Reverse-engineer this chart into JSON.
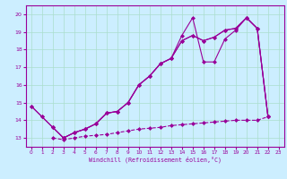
{
  "xlabel": "Windchill (Refroidissement éolien,°C)",
  "bg_color": "#cceeff",
  "line_color": "#990099",
  "grid_color": "#aaddcc",
  "xlim": [
    -0.5,
    23.5
  ],
  "ylim": [
    12.5,
    20.5
  ],
  "yticks": [
    13,
    14,
    15,
    16,
    17,
    18,
    19,
    20
  ],
  "xticks": [
    0,
    1,
    2,
    3,
    4,
    5,
    6,
    7,
    8,
    9,
    10,
    11,
    12,
    13,
    14,
    15,
    16,
    17,
    18,
    19,
    20,
    21,
    22,
    23
  ],
  "line1_y": [
    14.8,
    14.2,
    13.6,
    13.0,
    13.3,
    13.5,
    13.8,
    14.4,
    14.5,
    15.0,
    16.0,
    16.5,
    17.2,
    17.5,
    18.8,
    19.8,
    17.3,
    17.3,
    18.6,
    19.1,
    19.8,
    19.2,
    14.2,
    null
  ],
  "line2_y": [
    14.8,
    14.2,
    13.6,
    13.0,
    13.3,
    13.5,
    13.8,
    14.4,
    14.5,
    15.0,
    16.0,
    16.5,
    17.2,
    17.5,
    18.5,
    18.8,
    18.5,
    18.7,
    19.1,
    19.2,
    19.8,
    19.2,
    14.2,
    null
  ],
  "line3_y": [
    null,
    null,
    13.6,
    13.0,
    13.3,
    13.5,
    13.8,
    14.4,
    14.5,
    15.0,
    16.0,
    16.5,
    17.2,
    17.5,
    18.5,
    18.8,
    18.5,
    18.7,
    19.1,
    19.2,
    19.8,
    19.2,
    14.2,
    null
  ],
  "line4_y": [
    null,
    null,
    13.0,
    12.9,
    13.0,
    13.1,
    13.15,
    13.2,
    13.3,
    13.4,
    13.5,
    13.55,
    13.6,
    13.7,
    13.75,
    13.8,
    13.85,
    13.9,
    13.95,
    14.0,
    14.0,
    14.0,
    14.2,
    null
  ]
}
